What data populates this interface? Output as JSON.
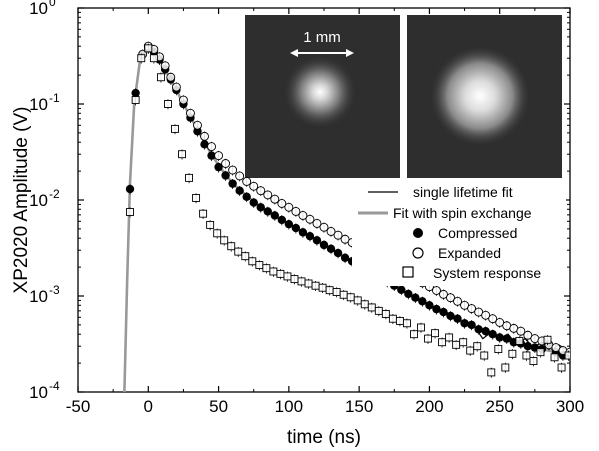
{
  "chart_data": {
    "type": "scatter",
    "xlabel": "time (ns)",
    "ylabel": "XP2020 Amplitude (V)",
    "xlim": [
      -50,
      300
    ],
    "ylim": [
      0.0001,
      1
    ],
    "yscale": "log",
    "x_ticks": [
      "-50",
      "0",
      "50",
      "100",
      "150",
      "200",
      "250",
      "300"
    ],
    "y_ticks": [
      {
        "base": "10",
        "exp": "0"
      },
      {
        "base": "10",
        "exp": "-1"
      },
      {
        "base": "10",
        "exp": "-2"
      },
      {
        "base": "10",
        "exp": "-3"
      },
      {
        "base": "10",
        "exp": "-4"
      }
    ],
    "legend": {
      "position": "right",
      "entries": [
        {
          "label": "single lifetime fit",
          "kind": "line",
          "color": "#000000"
        },
        {
          "label": "Fit with spin exchange",
          "kind": "line",
          "color": "#999999"
        },
        {
          "label": "Compressed",
          "kind": "filled-circle",
          "color": "#000000"
        },
        {
          "label": "Expanded",
          "kind": "open-circle",
          "color": "#000000"
        },
        {
          "label": "System response",
          "kind": "open-square",
          "color": "#000000"
        }
      ]
    },
    "inset": {
      "scale_label": "1 mm",
      "panels": [
        "compressed-cloud",
        "expanded-cloud"
      ]
    },
    "series": [
      {
        "name": "Compressed",
        "marker": "filled-circle",
        "points": [
          [
            -13,
            0.013
          ],
          [
            -9,
            0.13
          ],
          [
            -4,
            0.33
          ],
          [
            0,
            0.38
          ],
          [
            4,
            0.35
          ],
          [
            8,
            0.29
          ],
          [
            12,
            0.23
          ],
          [
            16,
            0.18
          ],
          [
            20,
            0.14
          ],
          [
            25,
            0.1
          ],
          [
            30,
            0.072
          ],
          [
            35,
            0.052
          ],
          [
            40,
            0.038
          ],
          [
            45,
            0.029
          ],
          [
            50,
            0.022
          ],
          [
            55,
            0.018
          ],
          [
            60,
            0.0148
          ],
          [
            65,
            0.0125
          ],
          [
            70,
            0.0108
          ],
          [
            75,
            0.0094
          ],
          [
            80,
            0.0084
          ],
          [
            85,
            0.0076
          ],
          [
            90,
            0.0069
          ],
          [
            95,
            0.0062
          ],
          [
            100,
            0.0056
          ],
          [
            105,
            0.0051
          ],
          [
            110,
            0.0046
          ],
          [
            115,
            0.0042
          ],
          [
            120,
            0.0038
          ],
          [
            125,
            0.0034
          ],
          [
            130,
            0.0031
          ],
          [
            135,
            0.0028
          ],
          [
            140,
            0.0025
          ],
          [
            145,
            0.0023
          ],
          [
            150,
            0.0021
          ],
          [
            155,
            0.0019
          ],
          [
            160,
            0.0017
          ],
          [
            165,
            0.00155
          ],
          [
            170,
            0.0014
          ],
          [
            175,
            0.00128
          ],
          [
            180,
            0.00116
          ],
          [
            185,
            0.00105
          ],
          [
            190,
            0.00096
          ],
          [
            195,
            0.00088
          ],
          [
            200,
            0.0008
          ],
          [
            205,
            0.00073
          ],
          [
            210,
            0.00068
          ],
          [
            215,
            0.00062
          ],
          [
            220,
            0.00058
          ],
          [
            225,
            0.00052
          ],
          [
            230,
            0.0005
          ],
          [
            235,
            0.00045
          ],
          [
            240,
            0.00043
          ],
          [
            245,
            0.0004
          ],
          [
            250,
            0.00037
          ],
          [
            255,
            0.00036
          ],
          [
            260,
            0.00033
          ],
          [
            265,
            0.00032
          ],
          [
            270,
            0.0003
          ],
          [
            275,
            0.00029
          ],
          [
            280,
            0.00028
          ],
          [
            285,
            0.00031
          ],
          [
            290,
            0.00026
          ],
          [
            295,
            0.00024
          ],
          [
            300,
            0.00025
          ]
        ]
      },
      {
        "name": "Expanded",
        "marker": "open-circle",
        "points": [
          [
            -4,
            0.33
          ],
          [
            0,
            0.4
          ],
          [
            4,
            0.37
          ],
          [
            8,
            0.31
          ],
          [
            12,
            0.25
          ],
          [
            16,
            0.19
          ],
          [
            20,
            0.15
          ],
          [
            25,
            0.11
          ],
          [
            30,
            0.08
          ],
          [
            35,
            0.06
          ],
          [
            40,
            0.046
          ],
          [
            45,
            0.036
          ],
          [
            50,
            0.029
          ],
          [
            55,
            0.024
          ],
          [
            60,
            0.0205
          ],
          [
            65,
            0.0178
          ],
          [
            70,
            0.0156
          ],
          [
            75,
            0.0139
          ],
          [
            80,
            0.0125
          ],
          [
            85,
            0.0113
          ],
          [
            90,
            0.0102
          ],
          [
            95,
            0.0092
          ],
          [
            100,
            0.0084
          ],
          [
            105,
            0.0076
          ],
          [
            110,
            0.0069
          ],
          [
            115,
            0.0063
          ],
          [
            120,
            0.0057
          ],
          [
            125,
            0.0052
          ],
          [
            130,
            0.0047
          ],
          [
            135,
            0.0043
          ],
          [
            140,
            0.0039
          ],
          [
            145,
            0.0036
          ],
          [
            150,
            0.0032
          ],
          [
            155,
            0.0029
          ],
          [
            160,
            0.0027
          ],
          [
            165,
            0.0024
          ],
          [
            170,
            0.0022
          ],
          [
            175,
            0.002
          ],
          [
            180,
            0.0018
          ],
          [
            185,
            0.00165
          ],
          [
            190,
            0.0015
          ],
          [
            195,
            0.00137
          ],
          [
            200,
            0.00125
          ],
          [
            205,
            0.00114
          ],
          [
            210,
            0.00104
          ],
          [
            215,
            0.00096
          ],
          [
            220,
            0.00088
          ],
          [
            225,
            0.0008
          ],
          [
            230,
            0.00074
          ],
          [
            235,
            0.00068
          ],
          [
            240,
            0.00063
          ],
          [
            245,
            0.00058
          ],
          [
            250,
            0.00053
          ],
          [
            255,
            0.00049
          ],
          [
            260,
            0.00046
          ],
          [
            265,
            0.00043
          ],
          [
            270,
            0.00039
          ],
          [
            275,
            0.00036
          ],
          [
            280,
            0.00034
          ],
          [
            285,
            0.00031
          ],
          [
            290,
            0.00029
          ],
          [
            295,
            0.00027
          ],
          [
            300,
            0.00026
          ]
        ]
      },
      {
        "name": "System response",
        "marker": "open-square",
        "points": [
          [
            -13,
            0.0075
          ],
          [
            -9,
            0.11
          ],
          [
            -5,
            0.3
          ],
          [
            0,
            0.38
          ],
          [
            4,
            0.3
          ],
          [
            9,
            0.19
          ],
          [
            14,
            0.1
          ],
          [
            19,
            0.055
          ],
          [
            24,
            0.03
          ],
          [
            29,
            0.017
          ],
          [
            34,
            0.0105
          ],
          [
            39,
            0.0072
          ],
          [
            44,
            0.0055
          ],
          [
            49,
            0.0045
          ],
          [
            54,
            0.0038
          ],
          [
            59,
            0.0033
          ],
          [
            64,
            0.0029
          ],
          [
            69,
            0.0026
          ],
          [
            74,
            0.0023
          ],
          [
            79,
            0.0021
          ],
          [
            84,
            0.00195
          ],
          [
            89,
            0.0018
          ],
          [
            94,
            0.0017
          ],
          [
            99,
            0.0016
          ],
          [
            104,
            0.0015
          ],
          [
            109,
            0.00142
          ],
          [
            114,
            0.00135
          ],
          [
            119,
            0.00128
          ],
          [
            124,
            0.00122
          ],
          [
            129,
            0.00115
          ],
          [
            134,
            0.0011
          ],
          [
            139,
            0.00103
          ],
          [
            144,
            0.00097
          ],
          [
            149,
            0.0009
          ],
          [
            154,
            0.00082
          ],
          [
            159,
            0.00076
          ],
          [
            164,
            0.0007
          ],
          [
            169,
            0.00065
          ],
          [
            174,
            0.00058
          ],
          [
            179,
            0.00055
          ],
          [
            184,
            0.00052
          ],
          [
            189,
            0.0004
          ],
          [
            194,
            0.00047
          ],
          [
            199,
            0.00036
          ],
          [
            204,
            0.00041
          ],
          [
            209,
            0.00033
          ],
          [
            214,
            0.00037
          ],
          [
            219,
            0.00031
          ],
          [
            224,
            0.00033
          ],
          [
            229,
            0.00027
          ],
          [
            234,
            0.0003
          ],
          [
            239,
            0.00024
          ],
          [
            244,
            0.00016
          ],
          [
            249,
            0.00028
          ],
          [
            254,
            0.00018
          ],
          [
            259,
            0.00025
          ],
          [
            264,
            0.00034
          ],
          [
            269,
            0.00024
          ],
          [
            274,
            0.00021
          ],
          [
            279,
            0.00026
          ],
          [
            284,
            0.00035
          ],
          [
            289,
            0.00023
          ],
          [
            294,
            0.00018
          ],
          [
            299,
            0.00024
          ]
        ]
      }
    ],
    "fits": [
      {
        "name": "single lifetime fit",
        "color": "#000000",
        "points": [
          [
            60,
            0.0145
          ],
          [
            80,
            0.0084
          ],
          [
            100,
            0.0056
          ],
          [
            120,
            0.0038
          ],
          [
            140,
            0.0025
          ],
          [
            160,
            0.0017
          ],
          [
            180,
            0.00116
          ],
          [
            200,
            0.0008
          ],
          [
            215,
            0.00065
          ],
          [
            225,
            0.00052
          ],
          [
            232,
            0.00048
          ],
          [
            238,
            0.00036
          ],
          [
            244,
            0.00042
          ],
          [
            250,
            0.00035
          ],
          [
            256,
            0.0004
          ],
          [
            262,
            0.00031
          ],
          [
            268,
            0.00036
          ],
          [
            274,
            0.00029
          ],
          [
            280,
            0.00033
          ],
          [
            286,
            0.00027
          ],
          [
            292,
            0.00031
          ],
          [
            300,
            0.00026
          ]
        ]
      },
      {
        "name": "Fit with spin exchange",
        "color": "#999999",
        "points": [
          [
            -17,
            0.0001
          ],
          [
            -15,
            0.0015
          ],
          [
            -13,
            0.015
          ],
          [
            -10,
            0.1
          ],
          [
            -6,
            0.28
          ],
          [
            -2,
            0.37
          ],
          [
            2,
            0.38
          ],
          [
            6,
            0.32
          ],
          [
            10,
            0.26
          ],
          [
            15,
            0.19
          ],
          [
            20,
            0.14
          ],
          [
            25,
            0.1
          ],
          [
            30,
            0.074
          ],
          [
            35,
            0.054
          ],
          [
            40,
            0.04
          ],
          [
            45,
            0.03
          ],
          [
            50,
            0.023
          ],
          [
            55,
            0.0185
          ],
          [
            60,
            0.015
          ],
          [
            70,
            0.011
          ],
          [
            80,
            0.0085
          ],
          [
            90,
            0.0069
          ],
          [
            100,
            0.0056
          ],
          [
            110,
            0.0046
          ],
          [
            120,
            0.0038
          ],
          [
            130,
            0.0031
          ],
          [
            140,
            0.0025
          ],
          [
            150,
            0.0021
          ],
          [
            160,
            0.0017
          ],
          [
            170,
            0.0014
          ],
          [
            180,
            0.00116
          ],
          [
            190,
            0.00096
          ],
          [
            200,
            0.0008
          ],
          [
            210,
            0.00068
          ],
          [
            220,
            0.00056
          ],
          [
            230,
            0.00049
          ],
          [
            240,
            0.00042
          ],
          [
            250,
            0.00037
          ],
          [
            260,
            0.00033
          ],
          [
            270,
            0.0003
          ],
          [
            280,
            0.00028
          ],
          [
            290,
            0.00026
          ],
          [
            300,
            0.00025
          ]
        ]
      }
    ]
  }
}
